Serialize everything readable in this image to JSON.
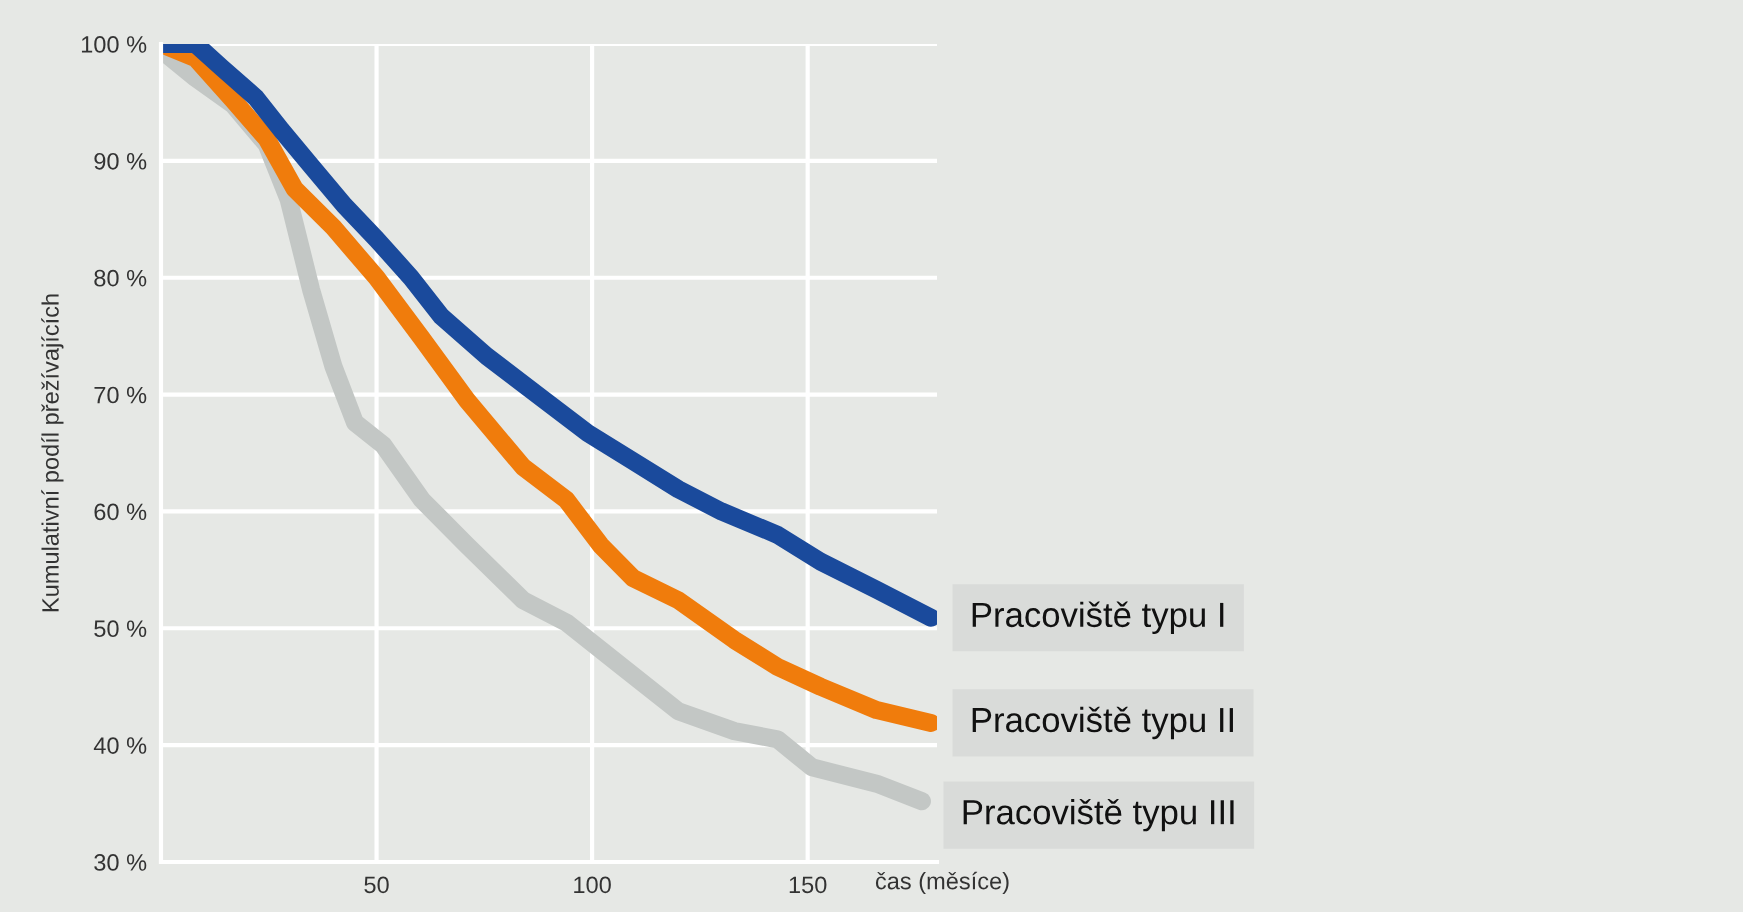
{
  "chart_data": {
    "type": "line",
    "xlabel": "čas (měsíce)",
    "ylabel": "Kumulativní podíl přežívajících",
    "xlim": [
      0,
      180
    ],
    "ylim": [
      30,
      100
    ],
    "xticks": [
      50,
      100,
      150
    ],
    "yticks": [
      {
        "value": 30,
        "label": "30 %"
      },
      {
        "value": 40,
        "label": "40 %"
      },
      {
        "value": 50,
        "label": "50 %"
      },
      {
        "value": 60,
        "label": "60 %"
      },
      {
        "value": 70,
        "label": "70 %"
      },
      {
        "value": 80,
        "label": "80 %"
      },
      {
        "value": 90,
        "label": "90 %"
      },
      {
        "value": 100,
        "label": "100 %"
      }
    ],
    "grid": true,
    "legend": false,
    "marker": "none",
    "line_style": "solid",
    "series": [
      {
        "name": "Pracoviště typu I",
        "color": "#1a4a9c",
        "x": [
          0,
          8,
          14,
          22,
          28,
          35,
          42.5,
          50,
          58,
          65,
          75.5,
          89,
          99,
          109.5,
          120,
          130,
          143,
          153,
          166,
          178.6
        ],
        "values": [
          100,
          100,
          98,
          95.4,
          92.6,
          89.5,
          86.2,
          83.3,
          80,
          76.7,
          73.3,
          69.5,
          66.7,
          64.3,
          61.9,
          60,
          58,
          55.7,
          53.3,
          50.9
        ]
      },
      {
        "name": "Pracoviště typu II",
        "color": "#f07c0c",
        "x": [
          0,
          8,
          16.7,
          24.5,
          31,
          40,
          50,
          60.5,
          71,
          84,
          94,
          102,
          109.5,
          120,
          133,
          143,
          153,
          166,
          178.6
        ],
        "values": [
          100,
          98.8,
          95.2,
          91.9,
          87.6,
          84.3,
          80,
          74.8,
          69.5,
          63.8,
          61,
          57.1,
          54.3,
          52.4,
          49,
          46.7,
          45,
          43,
          41.9
        ]
      },
      {
        "name": "Pracoviště typu III",
        "color": "#c3c7c5",
        "x": [
          0,
          8,
          16.7,
          24.5,
          29.6,
          34.8,
          40,
          45,
          51.5,
          60.5,
          71,
          84,
          94,
          107,
          120,
          133,
          143,
          151,
          166,
          176.5
        ],
        "values": [
          99.5,
          97.1,
          94.8,
          91.4,
          86.7,
          79,
          72.4,
          67.6,
          65.7,
          61,
          57.1,
          52.4,
          50.5,
          46.7,
          42.9,
          41.2,
          40.5,
          38.1,
          36.7,
          35.2
        ]
      }
    ]
  }
}
